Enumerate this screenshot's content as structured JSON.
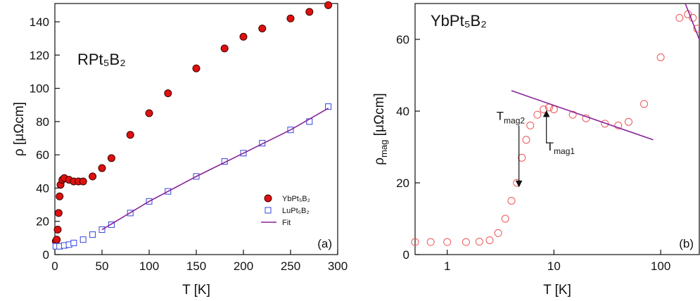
{
  "chart_data": [
    {
      "type": "scatter",
      "annotation": "RPt₅B₂",
      "panel_label": "(a)",
      "xlabel": "T [K]",
      "ylabel": "ρ [μΩcm]",
      "xlim": [
        0,
        300
      ],
      "xticks": [
        0,
        50,
        100,
        150,
        200,
        250,
        300
      ],
      "ylim": [
        0,
        151
      ],
      "yticks": [
        0,
        20,
        40,
        60,
        80,
        100,
        120,
        140
      ],
      "series": [
        {
          "name": "YbPt₅B₂",
          "color": "#dd1111",
          "marker": "circle",
          "x": [
            1,
            2,
            3,
            4,
            5,
            6,
            8,
            10,
            15,
            20,
            25,
            30,
            40,
            50,
            60,
            80,
            100,
            120,
            150,
            180,
            200,
            220,
            250,
            270,
            290
          ],
          "values": [
            8,
            9,
            15,
            25,
            35,
            42,
            45,
            46,
            45,
            44,
            44,
            44,
            47,
            52,
            58,
            72,
            85,
            97,
            112,
            124,
            131,
            136,
            142,
            146,
            150
          ]
        },
        {
          "name": "LuPt₅B₂",
          "color": "#3344dd",
          "marker": "square",
          "x": [
            1,
            5,
            10,
            15,
            20,
            30,
            40,
            50,
            60,
            80,
            100,
            120,
            150,
            180,
            200,
            220,
            250,
            270,
            290
          ],
          "values": [
            5,
            5,
            5.5,
            6,
            7,
            9,
            12,
            15,
            18,
            25,
            32,
            38,
            47,
            56,
            61,
            67,
            75,
            80,
            89
          ]
        },
        {
          "name": "Fit",
          "color": "#882299",
          "marker": "line",
          "x": [
            50,
            100,
            150,
            200,
            250,
            290
          ],
          "values": [
            15,
            32,
            47,
            61,
            75,
            88
          ]
        }
      ]
    },
    {
      "type": "scatter",
      "annotation": "YbPt₅B₂",
      "panel_label": "(b)",
      "xlabel": "T [K]",
      "ylabel": {
        "text": "ρ",
        "sub": "mag",
        "rest": " [μΩcm]"
      },
      "xscale": "log",
      "xlim": [
        0.5,
        230
      ],
      "xticks": [
        1,
        10,
        100
      ],
      "ylim": [
        0,
        70
      ],
      "yticks": [
        0,
        20,
        40,
        60
      ],
      "series": [
        {
          "color": "#ee5555",
          "marker": "open-circle",
          "x": [
            0.5,
            0.7,
            1,
            1.5,
            2,
            2.5,
            3,
            3.5,
            4,
            4.5,
            5,
            5.5,
            6,
            7,
            8,
            9,
            10,
            15,
            20,
            30,
            40,
            50,
            70,
            100,
            150,
            180,
            200,
            220
          ],
          "values": [
            3.5,
            3.5,
            3.5,
            3.5,
            3.6,
            4,
            6,
            10,
            15,
            20,
            27,
            32,
            36,
            39,
            40.5,
            41,
            40.5,
            39,
            38,
            36.5,
            36,
            37,
            42,
            55,
            66,
            67,
            66,
            63
          ]
        },
        {
          "color": "#882299",
          "marker": "line",
          "x": [
            4,
            85
          ],
          "values": [
            45.7,
            32
          ]
        },
        {
          "color": "#882299",
          "marker": "line",
          "x": [
            170,
            230
          ],
          "values": [
            70,
            60
          ]
        }
      ],
      "annotations": [
        {
          "text": "T",
          "sub": "mag2",
          "x": 4.7,
          "y": [
            36,
            19
          ]
        },
        {
          "text": "T",
          "sub": "mag1",
          "x": 8.5,
          "y": [
            31,
            40
          ]
        }
      ]
    }
  ]
}
